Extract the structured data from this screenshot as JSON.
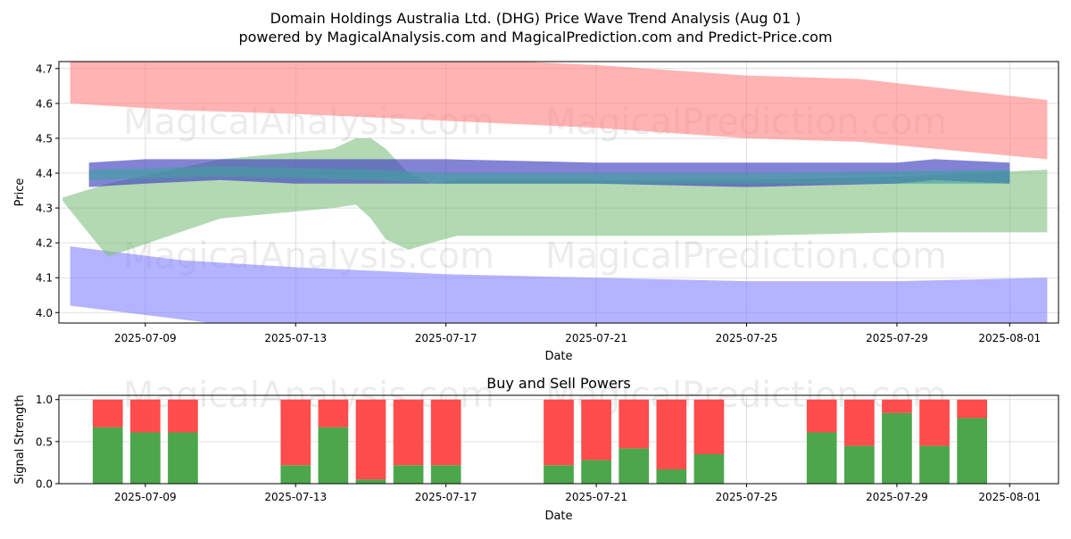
{
  "chart_data": [
    {
      "type": "area",
      "title": "Domain Holdings Australia Ltd. (DHG) Price Wave Trend Analysis (Aug 01 )",
      "subtitle": "powered by MagicalAnalysis.com and MagicalPrediction.com and Predict-Price.com",
      "xlabel": "Date",
      "ylabel": "Price",
      "xlim": [
        "2025-07-06.7",
        "2025-08-02.3"
      ],
      "ylim": [
        3.97,
        4.72
      ],
      "x_ticks": [
        "2025-07-09",
        "2025-07-13",
        "2025-07-17",
        "2025-07-21",
        "2025-07-25",
        "2025-07-29",
        "2025-08-01"
      ],
      "y_ticks": [
        "4.0",
        "4.1",
        "4.2",
        "4.3",
        "4.4",
        "4.5",
        "4.6",
        "4.7"
      ],
      "grid": true,
      "watermarks": [
        "MagicalAnalysis.com",
        "MagicalPrediction.com"
      ],
      "bands": [
        {
          "color": "#ff8080",
          "x": [
            "2025-07-07.0",
            "2025-07-10.0",
            "2025-07-13.0",
            "2025-07-17.0",
            "2025-07-21.0",
            "2025-07-25.0",
            "2025-07-28.0",
            "2025-08-02.0"
          ],
          "upper": [
            4.78,
            4.76,
            4.74,
            4.73,
            4.71,
            4.68,
            4.67,
            4.61
          ],
          "lower": [
            4.6,
            4.58,
            4.57,
            4.55,
            4.53,
            4.5,
            4.49,
            4.44
          ]
        },
        {
          "color": "#8080ff",
          "x": [
            "2025-07-07.0",
            "2025-07-10.0",
            "2025-07-13.0",
            "2025-07-17.0",
            "2025-07-21.0",
            "2025-07-25.0",
            "2025-07-29.0",
            "2025-08-02.0"
          ],
          "upper": [
            4.19,
            4.15,
            4.13,
            4.11,
            4.1,
            4.09,
            4.09,
            4.1
          ],
          "lower": [
            4.02,
            3.98,
            3.94,
            3.93,
            3.92,
            3.92,
            3.93,
            3.94
          ]
        },
        {
          "color": "#80c080",
          "x": [
            "2025-07-06.8",
            "2025-07-08.0",
            "2025-07-11.0",
            "2025-07-13.0",
            "2025-07-14.0",
            "2025-07-14.6",
            "2025-07-15.0",
            "2025-07-15.4",
            "2025-07-16.0",
            "2025-07-16.6",
            "2025-07-17.3",
            "2025-07-21.0",
            "2025-07-25.0",
            "2025-07-29.0",
            "2025-08-02.0"
          ],
          "upper": [
            4.33,
            4.37,
            4.44,
            4.46,
            4.47,
            4.5,
            4.5,
            4.47,
            4.4,
            4.37,
            4.38,
            4.38,
            4.38,
            4.39,
            4.41
          ],
          "lower": [
            4.32,
            4.16,
            4.27,
            4.29,
            4.3,
            4.31,
            4.27,
            4.21,
            4.18,
            4.2,
            4.22,
            4.22,
            4.22,
            4.23,
            4.23
          ]
        },
        {
          "color": "#4040c0",
          "x": [
            "2025-07-07.5",
            "2025-07-09.0",
            "2025-07-11.0",
            "2025-07-13.0",
            "2025-07-15.0",
            "2025-07-17.0",
            "2025-07-21.0",
            "2025-07-25.0",
            "2025-07-29.0",
            "2025-07-30.0",
            "2025-08-01.0"
          ],
          "upper": [
            4.43,
            4.44,
            4.44,
            4.44,
            4.44,
            4.44,
            4.43,
            4.43,
            4.43,
            4.44,
            4.43
          ],
          "lower": [
            4.36,
            4.37,
            4.38,
            4.37,
            4.37,
            4.37,
            4.37,
            4.36,
            4.37,
            4.38,
            4.37
          ]
        },
        {
          "color": "#40a0a0",
          "x": [
            "2025-07-07.5",
            "2025-07-11.0",
            "2025-07-15.0",
            "2025-07-17.0",
            "2025-07-21.0",
            "2025-07-25.0",
            "2025-08-01.0"
          ],
          "upper": [
            4.41,
            4.42,
            4.41,
            4.4,
            4.4,
            4.4,
            4.41
          ],
          "lower": [
            4.38,
            4.39,
            4.38,
            4.37,
            4.37,
            4.37,
            4.37
          ]
        }
      ]
    },
    {
      "type": "bar",
      "stacked": true,
      "title": "Buy and Sell Powers",
      "xlabel": "Date",
      "ylabel": "Signal Strength",
      "ylim": [
        0,
        1.05
      ],
      "y_ticks": [
        "0.0",
        "0.5",
        "1.0"
      ],
      "x_ticks": [
        "2025-07-09",
        "2025-07-13",
        "2025-07-17",
        "2025-07-21",
        "2025-07-25",
        "2025-07-29",
        "2025-08-01"
      ],
      "grid": true,
      "watermarks": [
        "MagicalAnalysis.com",
        "MagicalPrediction.com"
      ],
      "buy_color": "#4ca64c",
      "sell_color": "#ff4c4c",
      "dates": [
        "2025-07-08",
        "2025-07-09",
        "2025-07-10",
        "2025-07-13",
        "2025-07-14",
        "2025-07-15",
        "2025-07-16",
        "2025-07-17",
        "2025-07-20",
        "2025-07-21",
        "2025-07-22",
        "2025-07-23",
        "2025-07-24",
        "2025-07-27",
        "2025-07-28",
        "2025-07-29",
        "2025-07-30",
        "2025-07-31"
      ],
      "buy": [
        0.67,
        0.61,
        0.61,
        0.22,
        0.67,
        0.05,
        0.22,
        0.22,
        0.22,
        0.28,
        0.42,
        0.17,
        0.35,
        0.61,
        0.45,
        0.84,
        0.45,
        0.78
      ]
    }
  ]
}
